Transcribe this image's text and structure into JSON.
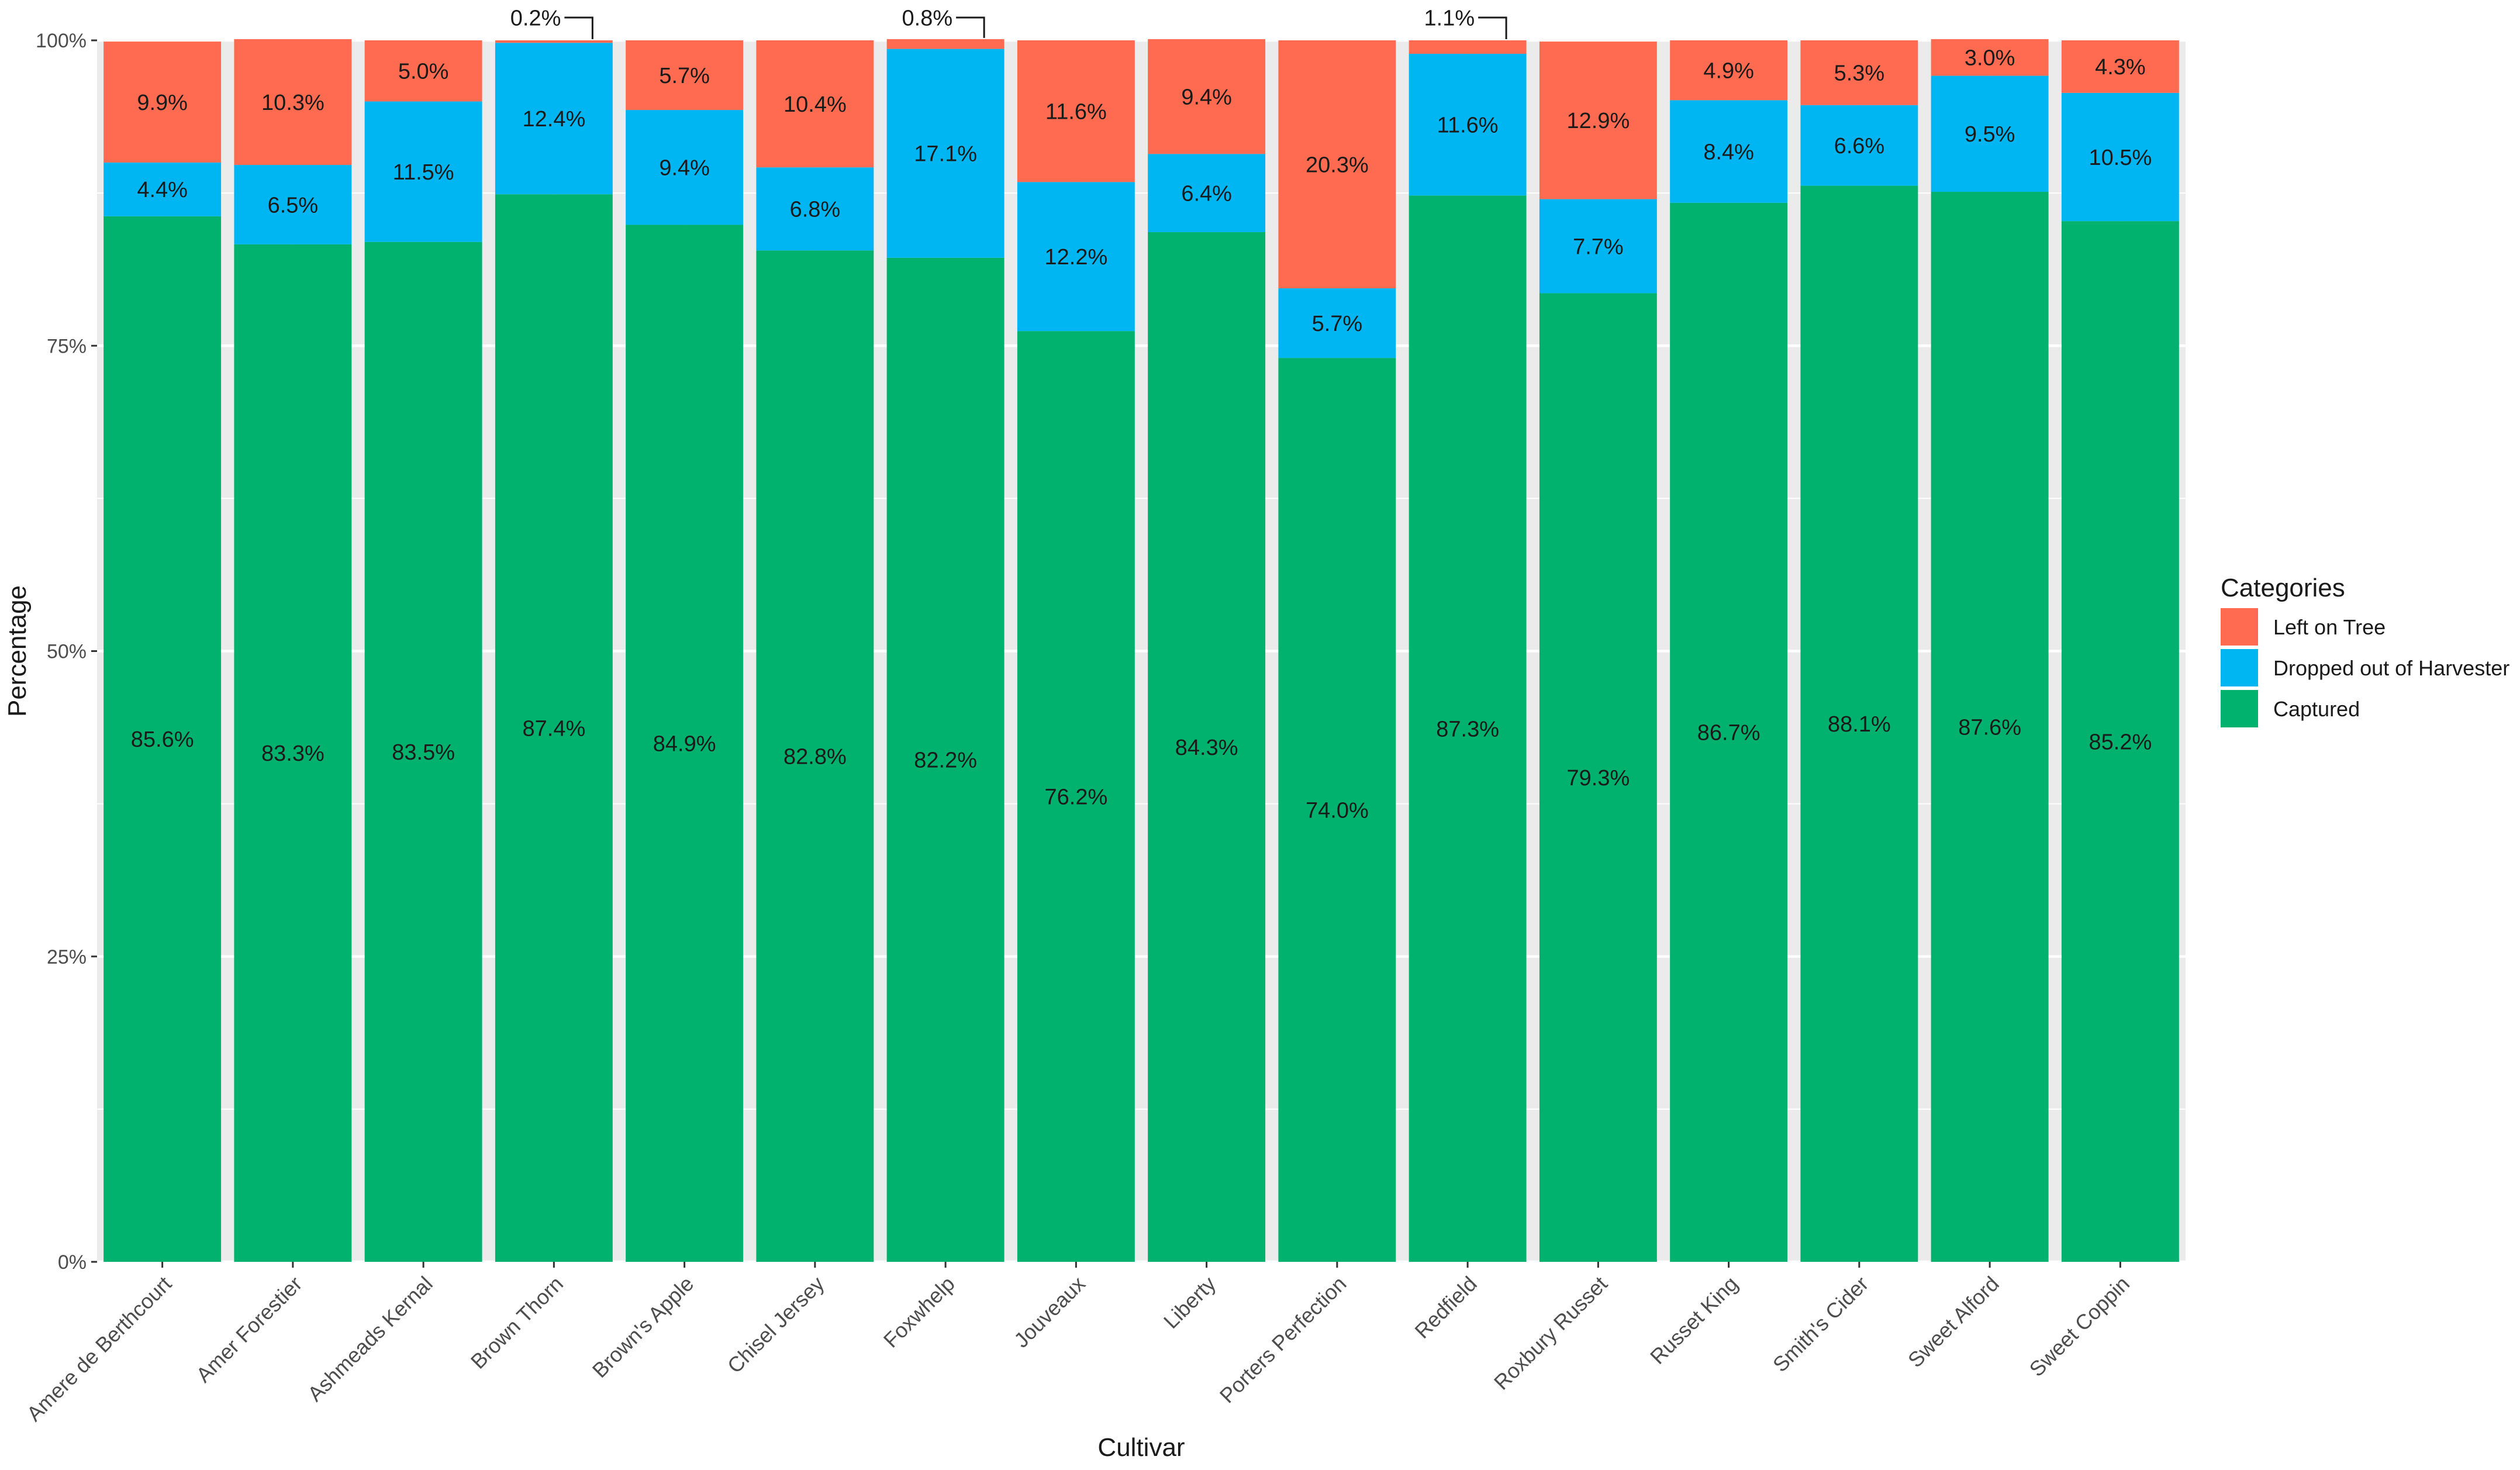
{
  "chart_data": {
    "type": "bar",
    "stacked": true,
    "xlabel": "Cultivar",
    "ylabel": "Percentage",
    "ylim": [
      0,
      100
    ],
    "yticks": [
      "0%",
      "25%",
      "50%",
      "75%",
      "100%"
    ],
    "grid": true,
    "legend_position": "right",
    "legend_title": "Categories",
    "categories": [
      "Amere de Berthcourt",
      "Amer Forestier",
      "Ashmeads Kernal",
      "Brown Thorn",
      "Brown's Apple",
      "Chisel Jersey",
      "Foxwhelp",
      "Jouveaux",
      "Liberty",
      "Porters Perfection",
      "Redfield",
      "Roxbury Russet",
      "Russet King",
      "Smith's Cider",
      "Sweet Alford",
      "Sweet Coppin"
    ],
    "series": [
      {
        "name": "Captured",
        "color": "#00B26E",
        "values": [
          85.6,
          83.3,
          83.5,
          87.4,
          84.9,
          82.8,
          82.2,
          76.2,
          84.3,
          74.0,
          87.3,
          79.3,
          86.7,
          88.1,
          87.6,
          85.2
        ],
        "labels": [
          "85.6%",
          "83.3%",
          "83.5%",
          "87.4%",
          "84.9%",
          "82.8%",
          "82.2%",
          "76.2%",
          "84.3%",
          "74.0%",
          "87.3%",
          "79.3%",
          "86.7%",
          "88.1%",
          "87.6%",
          "85.2%"
        ]
      },
      {
        "name": "Dropped out of Harvester",
        "color": "#00B6F2",
        "values": [
          4.4,
          6.5,
          11.5,
          12.4,
          9.4,
          6.8,
          17.1,
          12.2,
          6.4,
          5.7,
          11.6,
          7.7,
          8.4,
          6.6,
          9.5,
          10.5
        ],
        "labels": [
          "4.4%",
          "6.5%",
          "11.5%",
          "12.4%",
          "9.4%",
          "6.8%",
          "17.1%",
          "12.2%",
          "6.4%",
          "5.7%",
          "11.6%",
          "7.7%",
          "8.4%",
          "6.6%",
          "9.5%",
          "10.5%"
        ]
      },
      {
        "name": "Left on Tree",
        "color": "#FF6B50",
        "values": [
          9.9,
          10.3,
          5.0,
          0.2,
          5.7,
          10.4,
          0.8,
          11.6,
          9.4,
          20.3,
          1.1,
          12.9,
          4.9,
          5.3,
          3.0,
          4.3
        ],
        "labels": [
          "9.9%",
          "10.3%",
          "5.0%",
          "0.2%",
          "5.7%",
          "10.4%",
          "0.8%",
          "11.6%",
          "9.4%",
          "20.3%",
          "1.1%",
          "12.9%",
          "4.9%",
          "5.3%",
          "3.0%",
          "4.3%"
        ]
      }
    ],
    "legend_order": [
      "Left on Tree",
      "Dropped out of Harvester",
      "Captured"
    ],
    "panel_background": "#EBEBEB",
    "callout_threshold": 2.0
  }
}
